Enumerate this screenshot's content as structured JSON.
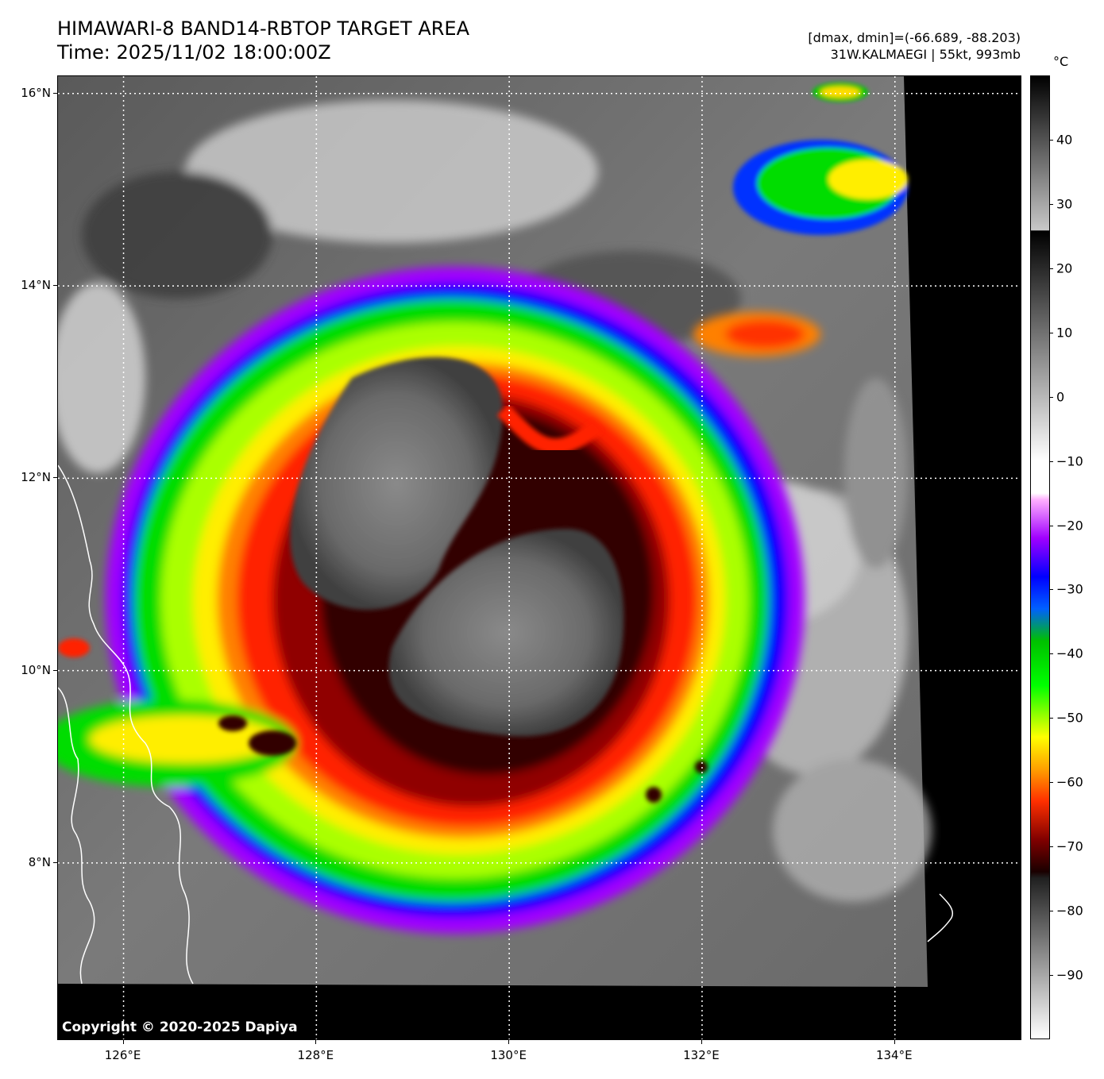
{
  "header": {
    "title_line1": "HIMAWARI-8 BAND14-RBTOP TARGET AREA",
    "title_line2": "Time: 2025/11/02 18:00:00Z",
    "info_line1": "[dmax, dmin]=(-66.689, -88.203)",
    "info_line2": "31W.KALMAEGI | 55kt, 993mb"
  },
  "map": {
    "copyright": "Copyright © 2020-2025 Dapiya",
    "lat_labels": [
      "16°N",
      "14°N",
      "12°N",
      "10°N",
      "8°N"
    ],
    "lon_labels": [
      "126°E",
      "128°E",
      "130°E",
      "132°E",
      "134°E"
    ],
    "lat_values": [
      16,
      14,
      12,
      10,
      8
    ],
    "lon_values": [
      126,
      128,
      130,
      132,
      134
    ],
    "lat_range": [
      6.15,
      16.18
    ],
    "lon_range": [
      125.32,
      135.32
    ],
    "gridlines": "dotted white",
    "coastline_color": "#ffffff"
  },
  "colorbar": {
    "unit": "°C",
    "labels": [
      "40",
      "30",
      "20",
      "10",
      "0",
      "−10",
      "−20",
      "−30",
      "−40",
      "−50",
      "−60",
      "−70",
      "−80",
      "−90"
    ],
    "values": [
      40,
      30,
      20,
      10,
      0,
      -10,
      -20,
      -30,
      -40,
      -50,
      -60,
      -70,
      -80,
      -90
    ],
    "range": [
      -100,
      50
    ]
  },
  "colors": {
    "cold_top_red": "#e00000",
    "cold_top_dark": "#1a0000",
    "orange": "#ff8000",
    "yellow": "#ffff00",
    "green": "#00e000",
    "blue": "#0000ff",
    "violet": "#a000ff"
  }
}
